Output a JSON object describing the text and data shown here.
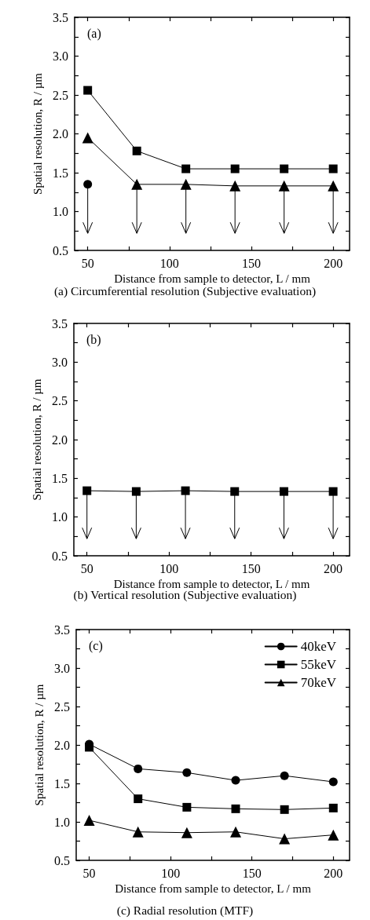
{
  "chart_data": [
    {
      "type": "line",
      "title": "(a) Circumferential resolution (Subjective evaluation)",
      "xlabel": "Distance from sample to detector, L / mm",
      "ylabel": "Spatial resolution, R / µm",
      "annotations": [
        "(a)"
      ],
      "x": [
        50,
        80,
        110,
        140,
        170,
        200
      ],
      "xlim": [
        42,
        210
      ],
      "ylim": [
        0.5,
        3.5
      ],
      "xticks": [
        50,
        {
          "value": 75,
          "label": null
        },
        100,
        {
          "value": 125,
          "label": null
        },
        150,
        {
          "value": 175,
          "label": null
        },
        200
      ],
      "yticks": [
        {
          "value": 0.5,
          "label": "0.5"
        },
        {
          "value": 0.75,
          "label": null
        },
        {
          "value": 1,
          "label": "1.0"
        },
        {
          "value": 1.25,
          "label": null
        },
        {
          "value": 1.5,
          "label": "1.5"
        },
        {
          "value": 1.75,
          "label": null
        },
        {
          "value": 2,
          "label": "2.0"
        },
        {
          "value": 2.25,
          "label": null
        },
        {
          "value": 2.5,
          "label": "2.5"
        },
        {
          "value": 2.75,
          "label": null
        },
        {
          "value": 3,
          "label": "3.0"
        },
        {
          "value": 3.25,
          "label": null
        },
        {
          "value": 3.5,
          "label": "3.5"
        }
      ],
      "series": [
        {
          "color": "#000000",
          "marker": "circle",
          "values": [
            1.35,
            null,
            null,
            null,
            null,
            null
          ],
          "errors": [
            [
              0.72,
              1.35
            ],
            null,
            null,
            null,
            null,
            null
          ]
        },
        {
          "color": "#000000",
          "marker": "square",
          "values": [
            2.56,
            1.78,
            1.55,
            1.55,
            1.55,
            1.55
          ]
        },
        {
          "color": "#000000",
          "marker": "triangle",
          "values": [
            1.95,
            1.35,
            1.35,
            1.33,
            1.33,
            1.33
          ],
          "errors": [
            null,
            [
              0.72,
              1.35
            ],
            [
              0.72,
              1.35
            ],
            [
              0.72,
              1.33
            ],
            [
              0.72,
              1.33
            ],
            [
              0.72,
              1.33
            ]
          ]
        }
      ]
    },
    {
      "type": "line",
      "title": "(b) Vertical resolution (Subjective evaluation)",
      "xlabel": "Distance from sample to detector, L / mm",
      "ylabel": "Spatial resolution, R / µm",
      "annotations": [
        "(b)"
      ],
      "x": [
        50,
        80,
        110,
        140,
        170,
        200
      ],
      "xlim": [
        42,
        210
      ],
      "ylim": [
        0.5,
        3.5
      ],
      "xticks": [
        50,
        {
          "value": 75,
          "label": null
        },
        100,
        {
          "value": 125,
          "label": null
        },
        150,
        {
          "value": 175,
          "label": null
        },
        200
      ],
      "yticks": [
        {
          "value": 0.5,
          "label": "0.5"
        },
        {
          "value": 0.75,
          "label": null
        },
        {
          "value": 1,
          "label": "1.0"
        },
        {
          "value": 1.25,
          "label": null
        },
        {
          "value": 1.5,
          "label": "1.5"
        },
        {
          "value": 1.75,
          "label": null
        },
        {
          "value": 2,
          "label": "2.0"
        },
        {
          "value": 2.25,
          "label": null
        },
        {
          "value": 2.5,
          "label": "2.5"
        },
        {
          "value": 2.75,
          "label": null
        },
        {
          "value": 3,
          "label": "3.0"
        },
        {
          "value": 3.25,
          "label": null
        },
        {
          "value": 3.5,
          "label": "3.5"
        }
      ],
      "series": [
        {
          "color": "#000000",
          "marker": "square",
          "values": [
            1.34,
            1.33,
            1.34,
            1.33,
            1.33,
            1.33
          ],
          "errors": [
            [
              0.72,
              1.34
            ],
            [
              0.72,
              1.33
            ],
            [
              0.72,
              1.34
            ],
            [
              0.72,
              1.33
            ],
            [
              0.72,
              1.33
            ],
            [
              0.72,
              1.33
            ]
          ]
        }
      ]
    },
    {
      "type": "line",
      "title": "(c) Radial resolution (MTF)",
      "xlabel": "Distance from sample to detector, L / mm",
      "ylabel": "Spatial resolution, R / µm",
      "annotations": [
        "(c)"
      ],
      "legend": "top right",
      "x": [
        50,
        80,
        110,
        140,
        170,
        200
      ],
      "xlim": [
        42,
        210
      ],
      "ylim": [
        0.5,
        3.5
      ],
      "xticks": [
        50,
        {
          "value": 75,
          "label": null
        },
        100,
        {
          "value": 125,
          "label": null
        },
        150,
        {
          "value": 175,
          "label": null
        },
        200
      ],
      "yticks": [
        {
          "value": 0.5,
          "label": "0.5"
        },
        {
          "value": 0.75,
          "label": null
        },
        {
          "value": 1,
          "label": "1.0"
        },
        {
          "value": 1.25,
          "label": null
        },
        {
          "value": 1.5,
          "label": "1.5"
        },
        {
          "value": 1.75,
          "label": null
        },
        {
          "value": 2,
          "label": "2.0"
        },
        {
          "value": 2.25,
          "label": null
        },
        {
          "value": 2.5,
          "label": "2.5"
        },
        {
          "value": 2.75,
          "label": null
        },
        {
          "value": 3,
          "label": "3.0"
        },
        {
          "value": 3.25,
          "label": null
        },
        {
          "value": 3.5,
          "label": "3.5"
        }
      ],
      "series": [
        {
          "name": "40keV",
          "color": "#000000",
          "marker": "circle",
          "values": [
            2.01,
            1.69,
            1.64,
            1.54,
            1.6,
            1.52
          ]
        },
        {
          "name": "55keV",
          "color": "#000000",
          "marker": "square",
          "values": [
            1.97,
            1.3,
            1.19,
            1.17,
            1.16,
            1.18
          ]
        },
        {
          "name": "70keV",
          "color": "#000000",
          "marker": "triangle",
          "values": [
            1.02,
            0.87,
            0.86,
            0.87,
            0.78,
            0.83
          ]
        }
      ]
    }
  ]
}
